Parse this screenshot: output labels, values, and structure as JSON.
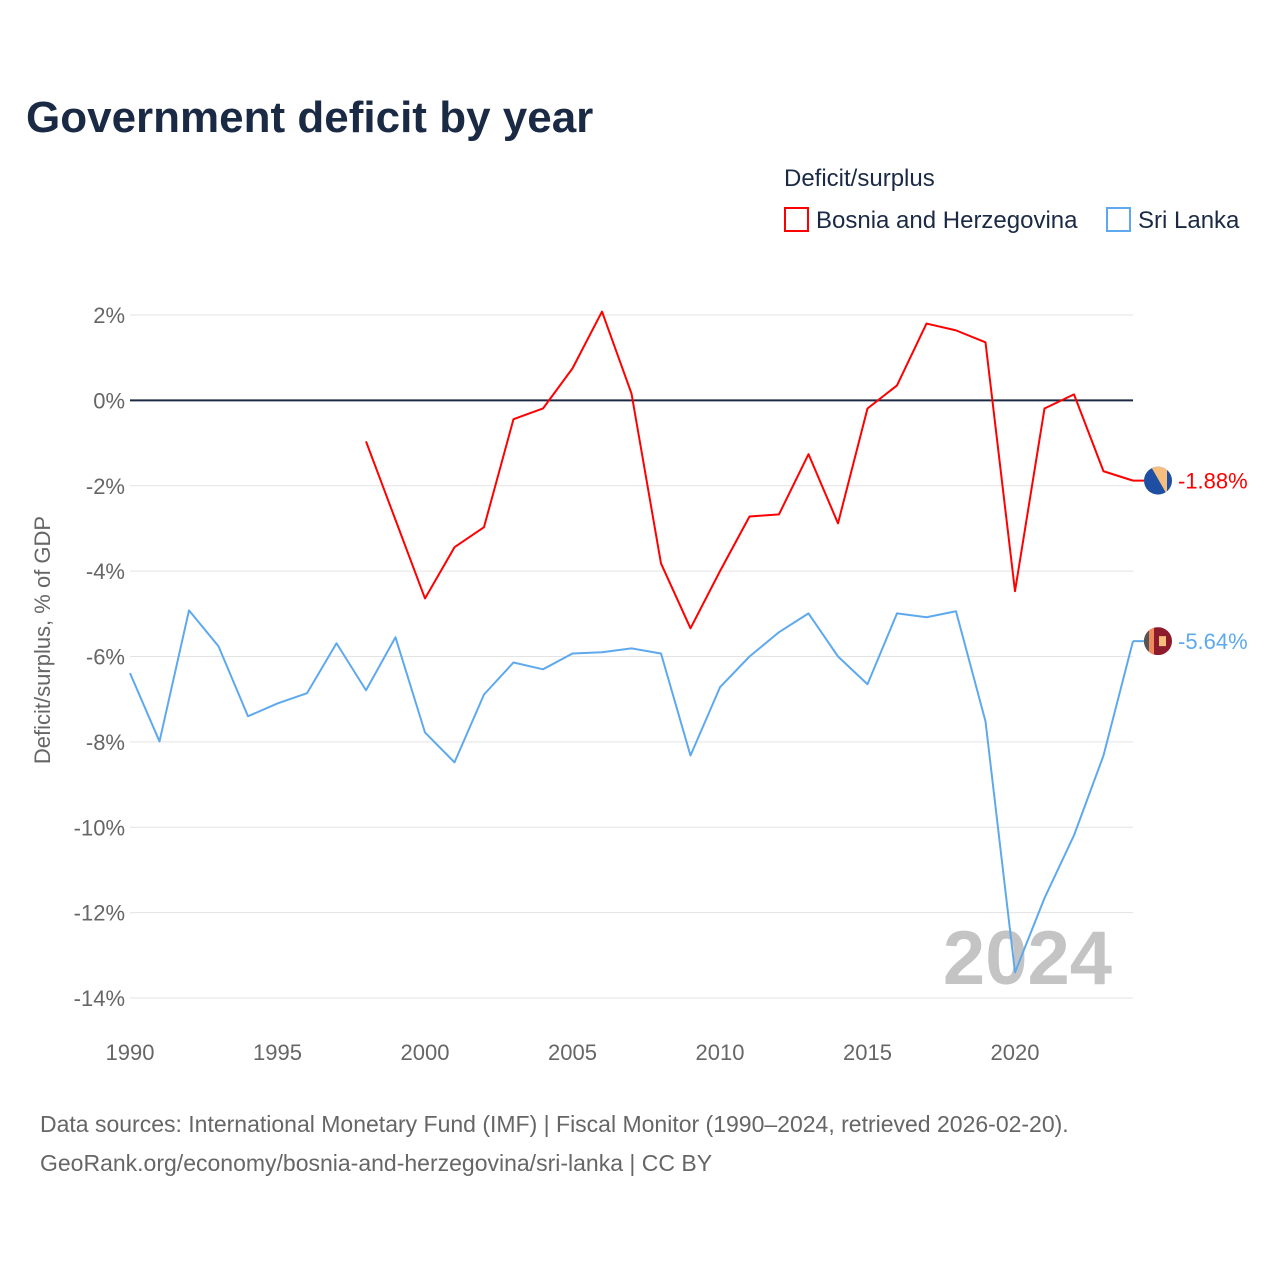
{
  "title": "Government deficit by year",
  "legend": {
    "title": "Deficit/surplus",
    "items": [
      "Bosnia and Herzegovina",
      "Sri Lanka"
    ]
  },
  "watermark_year": "2024",
  "source_line1": "Data sources: International Monetary Fund (IMF) | Fiscal Monitor (1990–2024, retrieved 2026-02-20).",
  "source_line2": "GeoRank.org/economy/bosnia-and-herzegovina/sri-lanka | CC BY",
  "chart_data": {
    "type": "line",
    "title": "Government deficit by year",
    "xlabel": "",
    "ylabel": "Deficit/surplus, % of GDP",
    "xlim": [
      1990,
      2024
    ],
    "ylim": [
      -14,
      2
    ],
    "xticks": [
      1990,
      1995,
      2000,
      2005,
      2010,
      2015,
      2020
    ],
    "xtick_labels": [
      "1990",
      "1995",
      "2000",
      "2005",
      "2010",
      "2015",
      "2020"
    ],
    "yticks": [
      2,
      0,
      -2,
      -4,
      -6,
      -8,
      -10,
      -12,
      -14
    ],
    "ytick_labels": [
      "2%",
      "0%",
      "-2%",
      "-4%",
      "-6%",
      "-8%",
      "-10%",
      "-12%",
      "-14%"
    ],
    "grid": true,
    "legend_position": "top-right",
    "series": [
      {
        "name": "Bosnia and Herzegovina",
        "color": "#ff0000",
        "end_label": "-1.88%",
        "x": [
          1998,
          1999,
          2000,
          2001,
          2002,
          2003,
          2004,
          2005,
          2006,
          2007,
          2008,
          2009,
          2010,
          2011,
          2012,
          2013,
          2014,
          2015,
          2016,
          2017,
          2018,
          2019,
          2020,
          2021,
          2022,
          2023,
          2024
        ],
        "values": [
          -0.96,
          -2.8,
          -4.64,
          -3.44,
          -2.97,
          -0.44,
          -0.19,
          0.75,
          2.08,
          0.16,
          -3.82,
          -5.34,
          -4.0,
          -2.72,
          -2.67,
          -1.26,
          -2.88,
          -0.19,
          0.35,
          1.8,
          1.64,
          1.36,
          -4.47,
          -0.19,
          0.14,
          -1.66,
          -1.88
        ]
      },
      {
        "name": "Sri Lanka",
        "color": "#5ea9ee",
        "end_label": "-5.64%",
        "x": [
          1990,
          1991,
          1992,
          1993,
          1994,
          1995,
          1996,
          1997,
          1998,
          1999,
          2000,
          2001,
          2002,
          2003,
          2004,
          2005,
          2006,
          2007,
          2008,
          2009,
          2010,
          2011,
          2012,
          2013,
          2014,
          2015,
          2016,
          2017,
          2018,
          2019,
          2020,
          2021,
          2022,
          2023,
          2024
        ],
        "values": [
          -6.39,
          -7.99,
          -4.92,
          -5.76,
          -7.4,
          -7.1,
          -6.86,
          -5.69,
          -6.79,
          -5.55,
          -7.78,
          -8.48,
          -6.89,
          -6.14,
          -6.3,
          -5.93,
          -5.9,
          -5.81,
          -5.93,
          -8.32,
          -6.72,
          -6.0,
          -5.43,
          -4.99,
          -6.0,
          -6.65,
          -4.99,
          -5.08,
          -4.94,
          -7.52,
          -13.4,
          -11.66,
          -10.19,
          -8.32,
          -5.64
        ]
      }
    ]
  }
}
